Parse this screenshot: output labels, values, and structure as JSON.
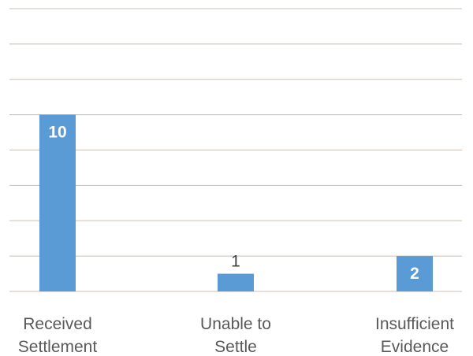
{
  "chart_data": {
    "type": "bar",
    "categories": [
      [
        "Received",
        "Settlement"
      ],
      [
        "Unable to",
        "Settle"
      ],
      [
        "Insufficient",
        "Evidence"
      ]
    ],
    "values": [
      10,
      1,
      2
    ],
    "value_labels": [
      "10",
      "1",
      "2"
    ],
    "ylim": [
      0,
      16
    ],
    "grid": true,
    "legend": "none",
    "colors": {
      "bar": "#5b9bd5",
      "grid": "#c9bfb5"
    }
  }
}
